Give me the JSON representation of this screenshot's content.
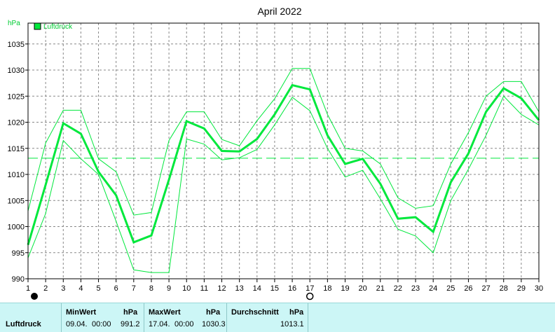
{
  "chart_data": {
    "type": "line",
    "title": "April 2022",
    "ylabel": "hPa",
    "ylim": [
      990,
      1039
    ],
    "y_ticks": [
      990,
      995,
      1000,
      1005,
      1010,
      1015,
      1020,
      1025,
      1030,
      1035
    ],
    "x": [
      1,
      2,
      3,
      4,
      5,
      6,
      7,
      8,
      9,
      10,
      11,
      12,
      13,
      14,
      15,
      16,
      17,
      18,
      19,
      20,
      21,
      22,
      23,
      24,
      25,
      26,
      27,
      28,
      29,
      30
    ],
    "grid": true,
    "legend": "top-left",
    "average_line": 1013.1,
    "series": [
      {
        "name": "Luftdruck",
        "color": "#00e83c",
        "mean": [
          996.5,
          1008,
          1019.8,
          1017.8,
          1010.5,
          1006,
          997,
          998.3,
          1009,
          1020.2,
          1018.8,
          1014.5,
          1014.4,
          1016.8,
          1021.5,
          1027.1,
          1026.3,
          1017.5,
          1012,
          1013,
          1008.2,
          1001.5,
          1001.8,
          999,
          1008.5,
          1014,
          1022,
          1026.5,
          1024.6,
          1020.4
        ],
        "max": [
          1003,
          1016,
          1022.3,
          1022.3,
          1013,
          1010.5,
          1002.2,
          1002.7,
          1016.5,
          1022,
          1022,
          1016.7,
          1015.5,
          1020.3,
          1024.5,
          1030.3,
          1030.3,
          1021.5,
          1015,
          1014.5,
          1012,
          1005.5,
          1003.5,
          1004,
          1012,
          1018,
          1025,
          1027.8,
          1027.8,
          1022
        ],
        "min": [
          994,
          1002.5,
          1016.5,
          1013,
          1010,
          1001,
          991.7,
          991.2,
          991.2,
          1016.8,
          1015.8,
          1012.8,
          1013.2,
          1014.8,
          1019.5,
          1024.8,
          1022.2,
          1015,
          1009.5,
          1010.8,
          1005.3,
          999.5,
          998.2,
          995,
          1005,
          1011,
          1017.5,
          1025,
          1021.5,
          1019.5
        ]
      }
    ]
  },
  "stats": {
    "row_label": "Luftdruck",
    "min": {
      "header": "MinWert",
      "unit": "hPa",
      "date": "09.04.",
      "time": "00:00",
      "value": "991.2"
    },
    "max": {
      "header": "MaxWert",
      "unit": "hPa",
      "date": "17.04.",
      "time": "00:00",
      "value": "1030.3"
    },
    "avg": {
      "header": "Durchschnitt",
      "unit": "hPa",
      "value": "1013.1"
    }
  }
}
